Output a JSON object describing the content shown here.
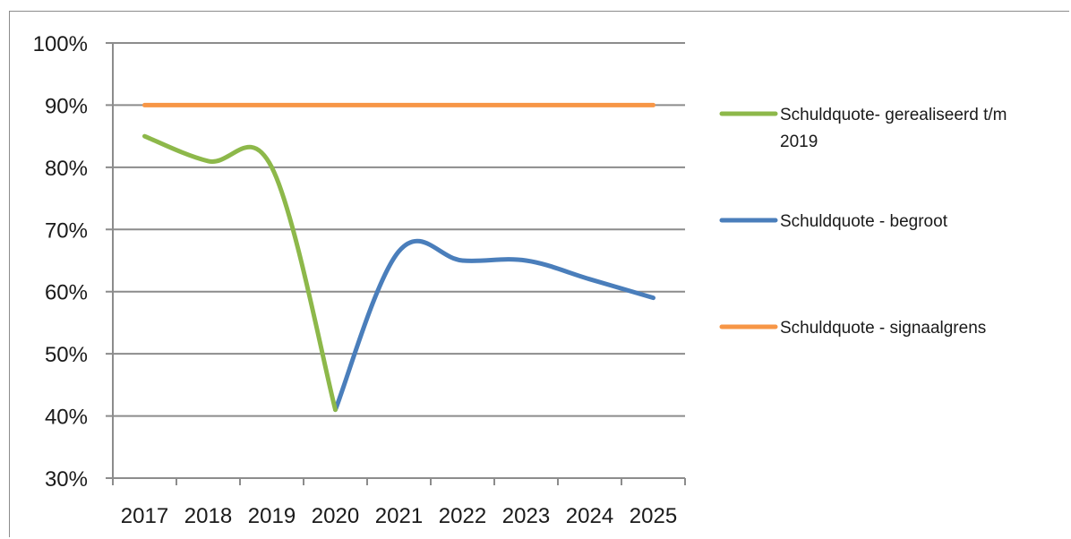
{
  "chart_data": {
    "type": "line",
    "categories": [
      "2017",
      "2018",
      "2019",
      "2020",
      "2021",
      "2022",
      "2023",
      "2024",
      "2025"
    ],
    "ylim": [
      0.3,
      1.0
    ],
    "y_ticks": [
      "100%",
      "90%",
      "80%",
      "70%",
      "60%",
      "50%",
      "40%",
      "30%"
    ],
    "y_tick_values": [
      1.0,
      0.9,
      0.8,
      0.7,
      0.6,
      0.5,
      0.4,
      0.3
    ],
    "grid": true,
    "legend_position": "right",
    "series": [
      {
        "name": "Schuldquote- gerealiseerd t/m 2019",
        "name_lines": [
          "Schuldquote- gerealiseerd t/m",
          "2019"
        ],
        "color": "#8db84a",
        "x": [
          "2017",
          "2018",
          "2019",
          "2020"
        ],
        "values": [
          0.85,
          0.81,
          0.8,
          0.41
        ]
      },
      {
        "name": "Schuldquote - begroot",
        "name_lines": [
          "Schuldquote - begroot"
        ],
        "color": "#4a7ebb",
        "x": [
          "2020",
          "2021",
          "2022",
          "2023",
          "2024",
          "2025"
        ],
        "values": [
          0.41,
          0.665,
          0.65,
          0.65,
          0.62,
          0.59
        ]
      },
      {
        "name": "Schuldquote - signaalgrens",
        "name_lines": [
          "Schuldquote - signaalgrens"
        ],
        "color": "#f79646",
        "x": [
          "2017",
          "2018",
          "2019",
          "2020",
          "2021",
          "2022",
          "2023",
          "2024",
          "2025"
        ],
        "values": [
          0.9,
          0.9,
          0.9,
          0.9,
          0.9,
          0.9,
          0.9,
          0.9,
          0.9
        ]
      }
    ]
  }
}
